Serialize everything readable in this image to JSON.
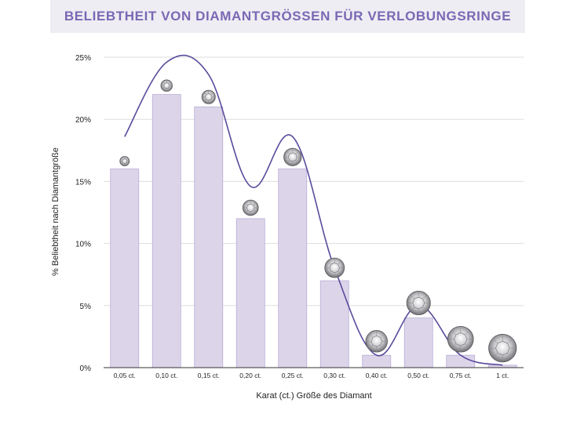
{
  "header": {
    "title": "BELIEBTHEIT VON DIAMANTGRÖSSEN FÜR VERLOBUNGSRINGE"
  },
  "colors": {
    "title": "#7a68b4",
    "title_bg": "#eeedf3",
    "bar_fill": "#dcd5ea",
    "bar_stroke": "#b9acd6",
    "curve": "#5b4a9c",
    "grid": "#dddddd"
  },
  "chart_data": {
    "type": "bar",
    "title": "BELIEBTHEIT VON DIAMANTGRÖSSEN FÜR VERLOBUNGSRINGE",
    "xlabel": "Karat (ct.) Größe des Diamant",
    "ylabel": "% Beliebtheit nach Diamantgröße",
    "categories": [
      "0,05 ct.",
      "0,10 ct.",
      "0,15 ct.",
      "0,20 ct.",
      "0,25 ct.",
      "0,30 ct.",
      "0,40 ct.",
      "0,50 ct.",
      "0,75 ct.",
      "1 ct."
    ],
    "values": [
      16,
      22,
      21,
      12,
      16,
      7,
      1,
      4,
      1,
      0.2
    ],
    "ylim": [
      0,
      25
    ],
    "yticks": [
      0,
      5,
      10,
      15,
      20,
      25
    ],
    "ytick_labels": [
      "0%",
      "5%",
      "10%",
      "15%",
      "20%",
      "25%"
    ],
    "grid": true,
    "trend_curve": true,
    "diamond_icons": true
  }
}
